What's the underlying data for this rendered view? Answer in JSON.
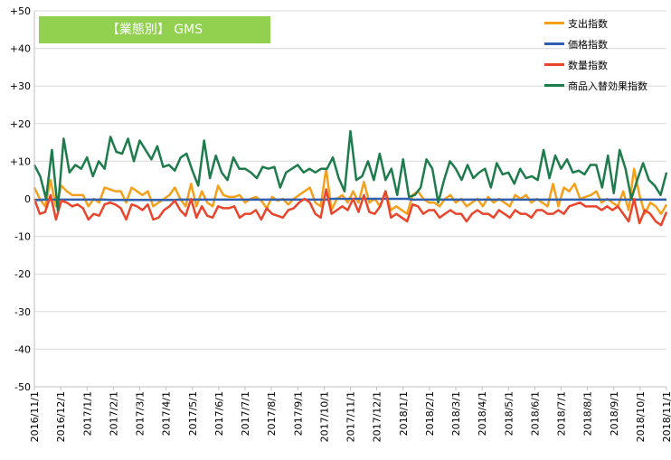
{
  "chart_data": {
    "type": "line",
    "title": "【業態別】 GMS",
    "xlabel": "",
    "ylabel": "",
    "ylim": [
      -50,
      50
    ],
    "y_ticks": [
      "+50",
      "+40",
      "+30",
      "+20",
      "+10",
      "0",
      "-10",
      "-20",
      "-30",
      "-40",
      "-50"
    ],
    "y_tick_values": [
      50,
      40,
      30,
      20,
      10,
      0,
      -10,
      -20,
      -30,
      -40,
      -50
    ],
    "x_tick_labels": [
      "2016/11/1",
      "2016/12/1",
      "2017/1/1",
      "2017/2/1",
      "2017/3/1",
      "2017/4/1",
      "2017/5/1",
      "2017/6/1",
      "2017/7/1",
      "2017/8/1",
      "2017/9/1",
      "2017/10/1",
      "2017/11/1",
      "2017/12/1",
      "2018/1/1",
      "2018/2/1",
      "2018/3/1",
      "2018/4/1",
      "2018/5/1",
      "2018/6/1",
      "2018/7/1",
      "2018/8/1",
      "2018/9/1",
      "2018/10/1",
      "2018/11/1"
    ],
    "grid": true,
    "legend_position": "top-right",
    "series": [
      {
        "name": "支出指数",
        "color": "#f5a01a",
        "values": [
          3,
          0,
          -2,
          5,
          -2,
          3.5,
          2,
          1,
          1,
          1,
          -2,
          0,
          -1,
          3,
          2.5,
          2,
          2,
          -1,
          3,
          2,
          1,
          2,
          -2,
          -1,
          0,
          1,
          3,
          0,
          -2,
          4,
          -2,
          2,
          -1,
          -2,
          3.5,
          1,
          0.5,
          0.5,
          1,
          -1,
          0,
          0.5,
          -0.5,
          -2.5,
          0.5,
          -0.5,
          0,
          -1.5,
          0,
          1,
          2,
          3,
          -1,
          -2,
          8,
          -3,
          0,
          1,
          -1,
          2,
          -1,
          4.5,
          -1,
          0,
          -2,
          2,
          -3,
          -2,
          -3,
          -4,
          1,
          2,
          0,
          -1,
          -1,
          -2,
          0,
          1,
          -1,
          0,
          -2,
          -1,
          0,
          -2,
          0.5,
          -1,
          0,
          -1,
          -2,
          1,
          0,
          1,
          -1,
          0,
          -1,
          -2,
          4,
          -2,
          3,
          2,
          4,
          0,
          0.5,
          1,
          2,
          -1,
          0,
          -1,
          -2,
          2,
          -3,
          8,
          1,
          -4,
          -1,
          -2,
          -4,
          -1.5
        ]
      },
      {
        "name": "価格指数",
        "color": "#2f5fb0",
        "values": [
          -0.3,
          -0.3,
          -0.2,
          -0.2,
          -0.2,
          -0.2,
          -0.2,
          -0.2,
          -0.2,
          -0.2,
          -0.2,
          -0.2,
          -0.2,
          -0.2,
          -0.3,
          -0.3,
          -0.3,
          -0.3,
          -0.3,
          -0.3,
          -0.3,
          -0.3,
          -0.3,
          -0.3,
          -0.3,
          -0.3,
          -0.3,
          -0.2,
          -0.2,
          -0.2,
          -0.2,
          -0.2,
          -0.2,
          -0.2,
          -0.2,
          -0.2,
          -0.2,
          -0.2,
          -0.2,
          -0.2,
          -0.2,
          -0.2,
          -0.2,
          -0.2,
          -0.2,
          -0.2,
          -0.2,
          -0.2,
          -0.2,
          -0.2,
          -0.2,
          -0.2,
          -0.2,
          -0.2,
          -0.2,
          0,
          0,
          0,
          0,
          0,
          0,
          0,
          0,
          0,
          0,
          0,
          0,
          0,
          0,
          0,
          -0.2,
          -0.2,
          -0.2,
          -0.2,
          -0.2,
          -0.2,
          -0.2,
          -0.2,
          -0.2,
          -0.2,
          -0.2,
          -0.2,
          -0.2,
          -0.2,
          -0.2,
          -0.2,
          -0.2,
          -0.2,
          -0.2,
          -0.2,
          -0.2,
          -0.2,
          -0.2,
          -0.2,
          -0.2,
          -0.2,
          -0.2,
          -0.2,
          -0.2,
          -0.2,
          -0.2,
          -0.2,
          -0.2,
          -0.2,
          -0.2,
          -0.2,
          -0.2,
          -0.2,
          -0.2,
          -0.2,
          -0.2,
          -0.2,
          -0.2,
          -0.2,
          -0.2,
          -0.2,
          -0.2,
          -0.2
        ]
      },
      {
        "name": "数量指数",
        "color": "#e8452c",
        "values": [
          0,
          -4,
          -3.5,
          1,
          -5.5,
          -0.5,
          -1,
          -2,
          -1.5,
          -2.5,
          -5.5,
          -4,
          -4.5,
          -1.5,
          -1,
          -1.5,
          -2.5,
          -5.5,
          -1.5,
          -2,
          -3,
          -1.5,
          -5.5,
          -5,
          -3,
          -2,
          -0.5,
          -3,
          -4.5,
          0,
          -5,
          -2,
          -4.5,
          -5,
          -2,
          -2.5,
          -2.5,
          -2,
          -5,
          -4,
          -4,
          -3,
          -5.5,
          -2.5,
          -4,
          -4.5,
          -5,
          -3,
          -2.5,
          -1,
          0,
          -1,
          -4,
          -5,
          2.5,
          -4,
          -3,
          -2,
          -3,
          0,
          -3.5,
          1,
          -3.5,
          -4,
          -2,
          2,
          -5,
          -4,
          -5,
          -6,
          -1.5,
          -2,
          -4,
          -3,
          -3,
          -5,
          -4,
          -3,
          -4,
          -4,
          -6,
          -4,
          -3,
          -4,
          -4,
          -5,
          -3,
          -4,
          -5,
          -3,
          -4,
          -4,
          -5,
          -3,
          -3,
          -4,
          -4,
          -3,
          -4,
          -2,
          -1.5,
          -1,
          -2,
          -2,
          -2,
          -3,
          -2,
          -3,
          -2,
          -4,
          -6,
          0,
          -6.5,
          -3,
          -4,
          -6,
          -7,
          -3.5
        ]
      },
      {
        "name": "商品入替効果指数",
        "color": "#1e7b4c",
        "values": [
          9,
          6,
          0,
          13,
          -3,
          16,
          7,
          9,
          8,
          11,
          6,
          10,
          8,
          16.5,
          12.5,
          12,
          16,
          10,
          15.5,
          13,
          10.5,
          14,
          8.5,
          9,
          7.5,
          11,
          12,
          7.5,
          3.5,
          15.5,
          5.5,
          11.5,
          7,
          5,
          11,
          8,
          8,
          7,
          5.5,
          8.5,
          8,
          8.5,
          3,
          7,
          8,
          9,
          7,
          8,
          7,
          8,
          8,
          11,
          5.5,
          2,
          18,
          5,
          6,
          10,
          5,
          12,
          5,
          8,
          1,
          10.5,
          0.5,
          1,
          3,
          10.5,
          8,
          -1,
          5,
          10,
          8,
          5,
          9,
          5.5,
          7,
          8,
          3,
          9.5,
          6.5,
          7,
          4,
          8,
          5.5,
          6,
          5,
          13,
          5.5,
          11.5,
          8,
          10.5,
          7,
          7.5,
          6.5,
          9,
          9,
          3,
          11.5,
          1.5,
          13,
          8,
          0,
          5,
          9.5,
          5,
          3.5,
          1,
          7
        ]
      }
    ]
  }
}
